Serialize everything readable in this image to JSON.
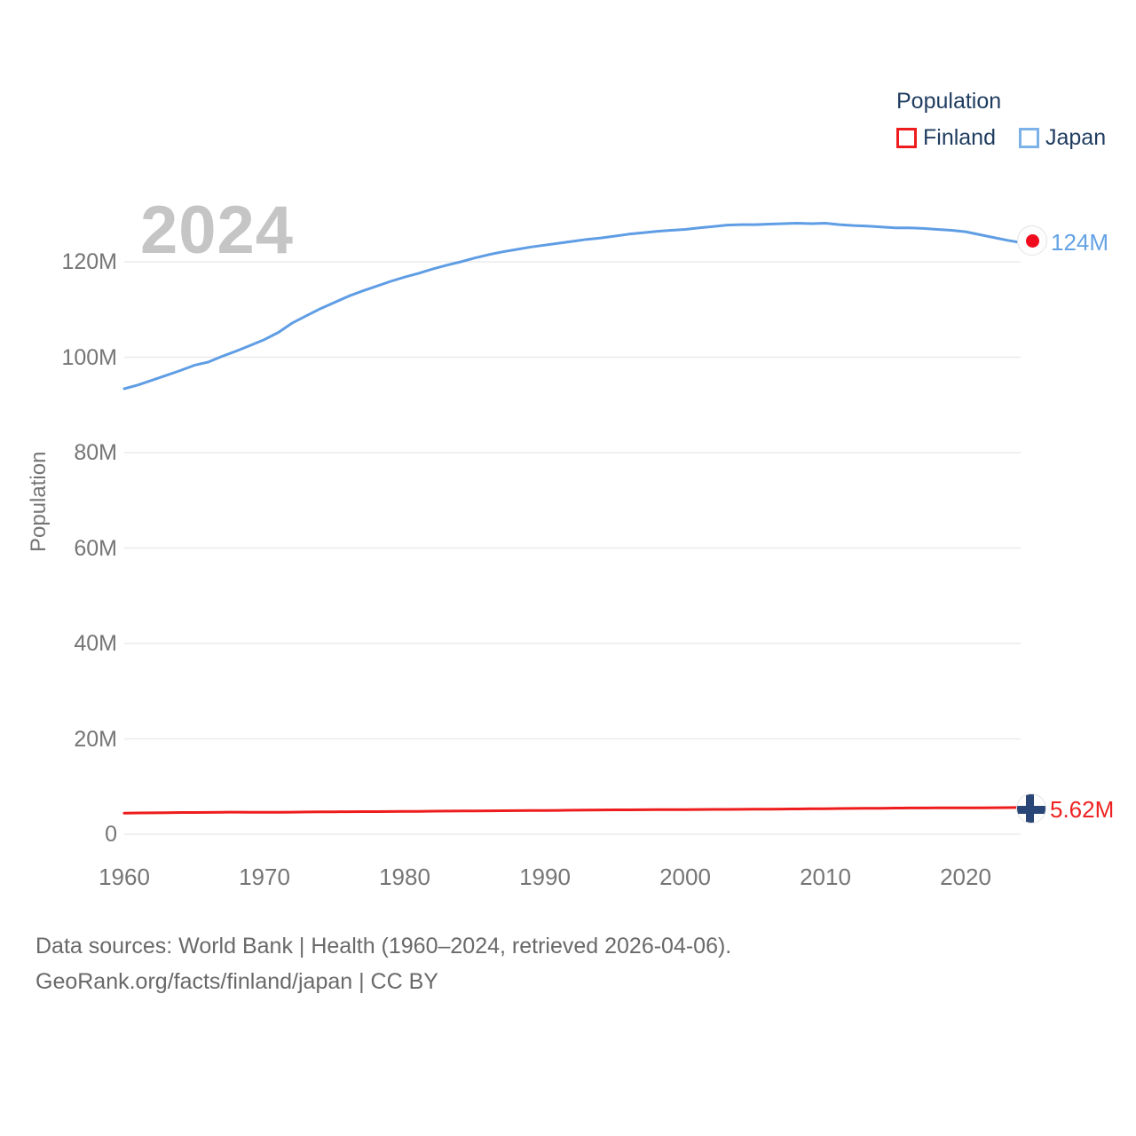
{
  "watermark": "2024",
  "legend": {
    "title": "Population",
    "items": [
      {
        "label": "Finland",
        "color": "#ee1c1c"
      },
      {
        "label": "Japan",
        "color": "#7db2e8"
      }
    ]
  },
  "axis": {
    "y_title": "Population"
  },
  "annotations": {
    "japan_end": "124M",
    "finland_end": "5.62M"
  },
  "footer": {
    "line1": "Data sources: World Bank | Health (1960–2024, retrieved 2026-04-06).",
    "line2": "GeoRank.org/facts/finland/japan | CC BY"
  },
  "chart_data": {
    "type": "line",
    "title": "Population of Finland and Japan, 1960–2024",
    "xlabel": "",
    "ylabel": "Population",
    "xlim": [
      1960,
      2024
    ],
    "ylim": [
      0,
      130
    ],
    "grid": "horizontal",
    "legend_position": "top-right",
    "xticks": [
      1960,
      1970,
      1980,
      1990,
      2000,
      2010,
      2020
    ],
    "ytick_values": [
      0,
      20,
      40,
      60,
      80,
      100,
      120
    ],
    "ytick_labels": [
      "0",
      "20M",
      "40M",
      "60M",
      "80M",
      "100M",
      "120M"
    ],
    "unit": "millions",
    "x": [
      1960,
      1961,
      1962,
      1963,
      1964,
      1965,
      1966,
      1967,
      1968,
      1969,
      1970,
      1971,
      1972,
      1973,
      1974,
      1975,
      1976,
      1977,
      1978,
      1979,
      1980,
      1981,
      1982,
      1983,
      1984,
      1985,
      1986,
      1987,
      1988,
      1989,
      1990,
      1991,
      1992,
      1993,
      1994,
      1995,
      1996,
      1997,
      1998,
      1999,
      2000,
      2001,
      2002,
      2003,
      2004,
      2005,
      2006,
      2007,
      2008,
      2009,
      2010,
      2011,
      2012,
      2013,
      2014,
      2015,
      2016,
      2017,
      2018,
      2019,
      2020,
      2021,
      2022,
      2023,
      2024
    ],
    "series": [
      {
        "name": "Finland",
        "color": "#ee1c1c",
        "end_label": "5.62M",
        "values": [
          4.43,
          4.46,
          4.49,
          4.52,
          4.55,
          4.56,
          4.58,
          4.61,
          4.63,
          4.62,
          4.61,
          4.61,
          4.63,
          4.67,
          4.69,
          4.71,
          4.73,
          4.74,
          4.75,
          4.76,
          4.78,
          4.8,
          4.83,
          4.86,
          4.88,
          4.9,
          4.92,
          4.93,
          4.95,
          4.96,
          4.99,
          5.01,
          5.04,
          5.07,
          5.09,
          5.11,
          5.12,
          5.14,
          5.15,
          5.17,
          5.18,
          5.19,
          5.2,
          5.21,
          5.23,
          5.25,
          5.27,
          5.29,
          5.31,
          5.34,
          5.36,
          5.39,
          5.41,
          5.44,
          5.46,
          5.48,
          5.5,
          5.51,
          5.52,
          5.52,
          5.53,
          5.54,
          5.56,
          5.58,
          5.62
        ]
      },
      {
        "name": "Japan",
        "color": "#5f9de4",
        "end_label": "124M",
        "values": [
          93.4,
          94.2,
          95.2,
          96.2,
          97.2,
          98.3,
          99.0,
          100.2,
          101.3,
          102.5,
          103.7,
          105.2,
          107.2,
          108.7,
          110.2,
          111.5,
          112.8,
          113.9,
          114.9,
          115.9,
          116.8,
          117.6,
          118.5,
          119.3,
          120.0,
          120.8,
          121.5,
          122.1,
          122.6,
          123.1,
          123.5,
          123.9,
          124.3,
          124.7,
          125.0,
          125.4,
          125.8,
          126.1,
          126.4,
          126.6,
          126.8,
          127.1,
          127.4,
          127.7,
          127.8,
          127.8,
          127.9,
          128.0,
          128.1,
          128.0,
          128.1,
          127.8,
          127.6,
          127.5,
          127.3,
          127.1,
          127.1,
          127.0,
          126.8,
          126.6,
          126.3,
          125.7,
          125.1,
          124.5,
          124.0
        ]
      }
    ]
  }
}
